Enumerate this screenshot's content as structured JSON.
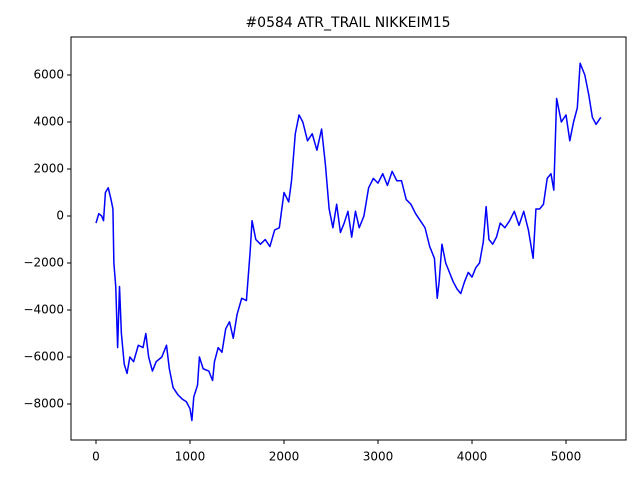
{
  "chart_data": {
    "type": "line",
    "title": "#0584 ATR_TRAIL NIKKEIM15",
    "x": [
      0,
      30,
      60,
      80,
      100,
      130,
      160,
      180,
      190,
      210,
      230,
      250,
      270,
      300,
      330,
      360,
      400,
      450,
      500,
      530,
      560,
      600,
      640,
      700,
      750,
      780,
      820,
      870,
      920,
      960,
      1000,
      1020,
      1040,
      1080,
      1100,
      1140,
      1200,
      1240,
      1260,
      1300,
      1340,
      1380,
      1420,
      1460,
      1500,
      1550,
      1600,
      1640,
      1660,
      1700,
      1750,
      1800,
      1850,
      1900,
      1950,
      2000,
      2050,
      2080,
      2120,
      2160,
      2200,
      2250,
      2300,
      2350,
      2400,
      2440,
      2480,
      2520,
      2560,
      2600,
      2640,
      2680,
      2720,
      2760,
      2800,
      2850,
      2900,
      2950,
      3000,
      3050,
      3100,
      3150,
      3200,
      3250,
      3300,
      3350,
      3400,
      3450,
      3500,
      3550,
      3600,
      3630,
      3650,
      3680,
      3720,
      3760,
      3800,
      3840,
      3880,
      3920,
      3960,
      4000,
      4040,
      4080,
      4120,
      4150,
      4180,
      4220,
      4260,
      4300,
      4350,
      4400,
      4450,
      4500,
      4550,
      4600,
      4650,
      4680,
      4720,
      4760,
      4800,
      4840,
      4870,
      4900,
      4950,
      5000,
      5040,
      5080,
      5120,
      5150,
      5200,
      5240,
      5280,
      5320,
      5370
    ],
    "series": [
      {
        "color": "#0000ff",
        "values": [
          -300,
          100,
          0,
          -200,
          1000,
          1200,
          700,
          300,
          -2000,
          -3000,
          -5600,
          -3000,
          -5000,
          -6300,
          -6700,
          -6000,
          -6200,
          -5500,
          -5600,
          -5000,
          -6000,
          -6600,
          -6200,
          -6000,
          -5500,
          -6500,
          -7300,
          -7600,
          -7800,
          -7900,
          -8200,
          -8700,
          -7700,
          -7200,
          -6000,
          -6500,
          -6600,
          -7000,
          -6200,
          -5600,
          -5800,
          -4800,
          -4500,
          -5200,
          -4200,
          -3500,
          -3600,
          -1500,
          -200,
          -1000,
          -1200,
          -1000,
          -1300,
          -600,
          -500,
          1000,
          600,
          1500,
          3500,
          4300,
          4000,
          3200,
          3500,
          2800,
          3700,
          2200,
          300,
          -500,
          500,
          -700,
          -300,
          200,
          -900,
          200,
          -500,
          0,
          1200,
          1600,
          1400,
          1800,
          1300,
          1900,
          1500,
          1500,
          700,
          500,
          100,
          -200,
          -500,
          -1300,
          -1800,
          -3500,
          -2800,
          -1200,
          -2000,
          -2400,
          -2800,
          -3100,
          -3300,
          -2800,
          -2400,
          -2600,
          -2200,
          -2000,
          -1100,
          400,
          -1000,
          -1200,
          -900,
          -300,
          -500,
          -200,
          200,
          -400,
          200,
          -600,
          -1800,
          300,
          300,
          500,
          1600,
          1800,
          1100,
          5000,
          4000,
          4300,
          3200,
          4000,
          4600,
          6500,
          6000,
          5200,
          4200,
          3900,
          4200
        ]
      }
    ],
    "xlim": [
      -266,
      5638
    ],
    "ylim": [
      -9532,
      7617
    ],
    "xticks": [
      0,
      1000,
      2000,
      3000,
      4000,
      5000
    ],
    "yticks": [
      {
        "value": -8000,
        "label": "−8000"
      },
      {
        "value": -6000,
        "label": "−6000"
      },
      {
        "value": -4000,
        "label": "−4000"
      },
      {
        "value": -2000,
        "label": "−2000"
      },
      0,
      2000,
      4000,
      6000
    ]
  }
}
